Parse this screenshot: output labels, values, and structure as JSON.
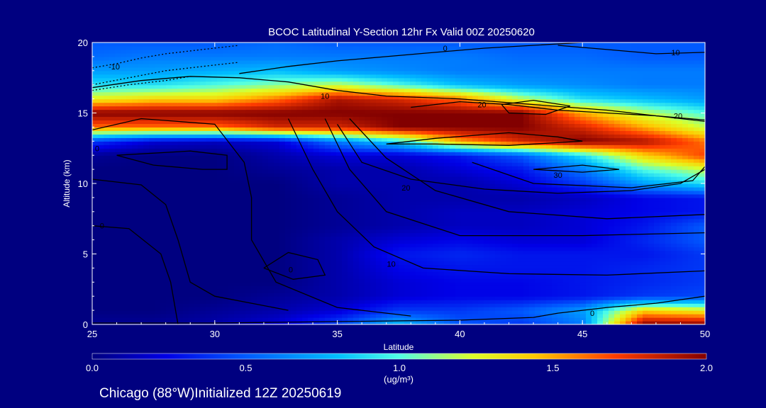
{
  "chart_data": {
    "type": "heatmap",
    "title": "BCOC Latitudinal Y-Section 12hr  Fx Valid 00Z 20250620",
    "xlabel": "Latitude",
    "ylabel": "Altitude (km)",
    "xlim": [
      25,
      50
    ],
    "ylim": [
      0,
      20
    ],
    "x_ticks": [
      "25",
      "30",
      "35",
      "40",
      "45",
      "50"
    ],
    "y_ticks": [
      "0",
      "5",
      "10",
      "15",
      "20"
    ],
    "colorbar": {
      "min": 0.0,
      "max": 2.0,
      "ticks": [
        "0.0",
        "0.5",
        "1.0",
        "1.5",
        "2.0"
      ],
      "unit_label": "(ug/m³)"
    },
    "concentration_grid": {
      "lats": [
        25,
        27.5,
        30,
        32.5,
        35,
        37.5,
        40,
        42.5,
        45,
        47.5,
        50
      ],
      "alts": [
        0,
        1,
        2,
        3,
        4,
        5,
        6,
        7,
        8,
        9,
        10,
        11,
        12,
        13,
        14,
        15,
        16,
        17,
        18,
        19,
        20
      ],
      "values": [
        [
          0.05,
          0.05,
          0.1,
          0.2,
          0.45,
          0.8,
          0.5,
          0.4,
          0.6,
          2.0,
          2.0
        ],
        [
          0.0,
          0.0,
          0.05,
          0.1,
          0.2,
          0.4,
          0.4,
          0.5,
          0.7,
          1.4,
          1.3
        ],
        [
          0.0,
          0.0,
          0.0,
          0.05,
          0.1,
          0.2,
          0.25,
          0.25,
          0.3,
          0.4,
          0.45
        ],
        [
          0.0,
          0.0,
          0.0,
          0.0,
          0.1,
          0.2,
          0.25,
          0.25,
          0.3,
          0.35,
          0.4
        ],
        [
          0.0,
          0.0,
          0.0,
          0.0,
          0.1,
          0.25,
          0.3,
          0.3,
          0.3,
          0.35,
          0.4
        ],
        [
          0.0,
          0.0,
          0.0,
          0.0,
          0.1,
          0.3,
          0.35,
          0.3,
          0.3,
          0.3,
          0.4
        ],
        [
          0.0,
          0.0,
          0.0,
          0.0,
          0.1,
          0.2,
          0.25,
          0.2,
          0.2,
          0.35,
          0.5
        ],
        [
          0.0,
          0.0,
          0.0,
          0.0,
          0.05,
          0.1,
          0.15,
          0.15,
          0.2,
          0.3,
          0.5
        ],
        [
          0.0,
          0.0,
          0.0,
          0.0,
          0.05,
          0.1,
          0.15,
          0.15,
          0.2,
          0.25,
          0.3
        ],
        [
          0.0,
          0.0,
          0.0,
          0.0,
          0.05,
          0.1,
          0.1,
          0.1,
          0.15,
          0.25,
          0.3
        ],
        [
          0.0,
          0.0,
          0.0,
          0.0,
          0.1,
          0.1,
          0.1,
          0.2,
          0.4,
          0.7,
          0.9
        ],
        [
          0.0,
          0.0,
          0.0,
          0.05,
          0.1,
          0.1,
          0.2,
          0.3,
          0.6,
          1.0,
          1.2
        ],
        [
          0.05,
          0.0,
          0.0,
          0.1,
          0.2,
          0.2,
          0.3,
          0.5,
          0.9,
          1.4,
          1.7
        ],
        [
          0.4,
          0.2,
          0.15,
          0.2,
          0.6,
          0.9,
          1.5,
          1.8,
          2.0,
          1.9,
          1.6
        ],
        [
          1.6,
          1.6,
          1.6,
          1.8,
          1.8,
          2.0,
          2.0,
          2.0,
          1.8,
          1.5,
          1.2
        ],
        [
          2.0,
          2.0,
          2.0,
          2.0,
          2.0,
          2.0,
          2.0,
          2.0,
          1.5,
          1.2,
          1.0
        ],
        [
          1.3,
          1.4,
          1.4,
          1.6,
          1.9,
          1.8,
          1.6,
          1.2,
          0.9,
          0.8,
          0.7
        ],
        [
          0.9,
          0.9,
          1.0,
          1.1,
          1.2,
          1.0,
          0.8,
          0.7,
          0.65,
          0.6,
          0.6
        ],
        [
          0.7,
          0.7,
          0.75,
          0.8,
          0.7,
          0.65,
          0.6,
          0.6,
          0.6,
          0.6,
          0.6
        ],
        [
          0.55,
          0.6,
          0.6,
          0.6,
          0.6,
          0.6,
          0.6,
          0.55,
          0.55,
          0.5,
          0.5
        ],
        [
          0.5,
          0.5,
          0.5,
          0.55,
          0.5,
          0.5,
          0.5,
          0.5,
          0.5,
          0.5,
          0.5
        ]
      ]
    },
    "contours": [
      {
        "label": "0",
        "dashed": false,
        "points": [
          [
            25,
            0.1
          ],
          [
            30,
            0.1
          ],
          [
            35,
            0.2
          ],
          [
            40,
            0.3
          ],
          [
            43,
            0.5
          ],
          [
            44,
            0.8
          ],
          [
            46,
            1.2
          ],
          [
            48,
            1.5
          ],
          [
            50,
            2.0
          ]
        ]
      },
      {
        "label": "10",
        "dashed": false,
        "points": [
          [
            25,
            16.8
          ],
          [
            27,
            17.3
          ],
          [
            29,
            17.6
          ],
          [
            31,
            17.5
          ],
          [
            33,
            17.2
          ],
          [
            35,
            16.6
          ],
          [
            37,
            16.2
          ],
          [
            40,
            16.0
          ],
          [
            43,
            15.6
          ],
          [
            46,
            15.2
          ],
          [
            48,
            14.8
          ],
          [
            50,
            14.5
          ]
        ]
      },
      {
        "label": "0",
        "dashed": false,
        "points": [
          [
            31,
            17.8
          ],
          [
            33,
            18.3
          ],
          [
            35,
            18.7
          ],
          [
            37,
            19.0
          ],
          [
            39,
            19.3
          ],
          [
            41,
            19.6
          ],
          [
            43,
            19.8
          ],
          [
            45,
            20.0
          ]
        ]
      },
      {
        "label": "10",
        "dashed": false,
        "points": [
          [
            44,
            19.8
          ],
          [
            46,
            19.5
          ],
          [
            48,
            19.2
          ],
          [
            50,
            19.3
          ]
        ]
      },
      {
        "label": "20",
        "dashed": false,
        "points": [
          [
            38,
            15.4
          ],
          [
            40,
            15.8
          ],
          [
            42,
            15.6
          ],
          [
            44,
            15.2
          ],
          [
            46,
            15.0
          ],
          [
            48,
            14.8
          ],
          [
            50,
            14.4
          ]
        ]
      },
      {
        "label": "30",
        "dashed": false,
        "points": [
          [
            37,
            12.8
          ],
          [
            39,
            13.2
          ],
          [
            42,
            13.6
          ],
          [
            44,
            13.3
          ],
          [
            45,
            13.0
          ],
          [
            42,
            12.7
          ],
          [
            39,
            12.8
          ],
          [
            37,
            12.8
          ]
        ]
      },
      {
        "label": "",
        "dashed": false,
        "points": [
          [
            41.7,
            15.6
          ],
          [
            43,
            15.9
          ],
          [
            44.5,
            15.5
          ],
          [
            43.5,
            14.9
          ],
          [
            42,
            15.0
          ],
          [
            41.7,
            15.6
          ]
        ]
      },
      {
        "label": "30",
        "dashed": false,
        "points": [
          [
            43,
            11.0
          ],
          [
            45,
            11.3
          ],
          [
            46.5,
            11.0
          ],
          [
            45,
            10.8
          ],
          [
            43,
            11.0
          ]
        ]
      },
      {
        "label": "20",
        "dashed": false,
        "points": [
          [
            35,
            14.2
          ],
          [
            36,
            11.5
          ],
          [
            38,
            10.3
          ],
          [
            41,
            9.6
          ],
          [
            44,
            9.3
          ],
          [
            47,
            9.5
          ],
          [
            49,
            10.0
          ],
          [
            50,
            11.0
          ]
        ]
      },
      {
        "label": "",
        "dashed": false,
        "points": [
          [
            40.5,
            11.5
          ],
          [
            43,
            10.0
          ],
          [
            47,
            9.7
          ],
          [
            49.5,
            10.2
          ],
          [
            50,
            11.2
          ]
        ]
      },
      {
        "label": "10",
        "dashed": false,
        "points": [
          [
            33,
            14.6
          ],
          [
            34,
            11.0
          ],
          [
            35,
            8.0
          ],
          [
            36.5,
            5.5
          ],
          [
            38.5,
            4.0
          ],
          [
            42,
            3.6
          ],
          [
            46,
            3.5
          ],
          [
            50,
            3.8
          ]
        ]
      },
      {
        "label": "",
        "dashed": false,
        "points": [
          [
            34.5,
            14.6
          ],
          [
            35.5,
            11.0
          ],
          [
            37,
            8.0
          ],
          [
            40,
            6.3
          ],
          [
            45,
            6.3
          ],
          [
            50,
            6.5
          ]
        ]
      },
      {
        "label": "",
        "dashed": false,
        "points": [
          [
            35.5,
            14.6
          ],
          [
            37,
            11.8
          ],
          [
            39,
            9.5
          ],
          [
            42,
            8.0
          ],
          [
            46,
            7.5
          ],
          [
            50,
            7.8
          ]
        ]
      },
      {
        "label": "0",
        "dashed": false,
        "points": [
          [
            32,
            4.0
          ],
          [
            33,
            5.1
          ],
          [
            34.2,
            4.6
          ],
          [
            34.5,
            3.5
          ],
          [
            33.2,
            3.2
          ],
          [
            32,
            4.0
          ]
        ]
      },
      {
        "label": "",
        "dashed": false,
        "points": [
          [
            26,
            12.0
          ],
          [
            27.5,
            11.3
          ],
          [
            29.5,
            11.0
          ],
          [
            30.5,
            11.0
          ],
          [
            30.5,
            12.0
          ],
          [
            29,
            12.3
          ],
          [
            26,
            12.0
          ]
        ]
      },
      {
        "label": "0",
        "dashed": false,
        "points": [
          [
            25,
            13.8
          ],
          [
            27,
            14.6
          ],
          [
            30,
            14.2
          ],
          [
            31.2,
            11.5
          ],
          [
            31.5,
            9.0
          ],
          [
            31.5,
            6.0
          ],
          [
            32.5,
            3.0
          ],
          [
            35,
            1.2
          ],
          [
            38,
            0.6
          ]
        ]
      },
      {
        "label": "",
        "dashed": false,
        "points": [
          [
            25,
            10.3
          ],
          [
            27,
            9.9
          ],
          [
            28,
            8.5
          ],
          [
            28.5,
            6.0
          ],
          [
            29,
            3.0
          ],
          [
            30,
            2.0
          ],
          [
            33,
            1.0
          ]
        ]
      },
      {
        "label": "0",
        "dashed": false,
        "points": [
          [
            25,
            7.0
          ],
          [
            26.5,
            6.8
          ],
          [
            27.8,
            5.0
          ],
          [
            28.2,
            3.0
          ],
          [
            28.5,
            0.0
          ]
        ]
      },
      {
        "label": "-10",
        "dashed": true,
        "points": [
          [
            25,
            18.2
          ],
          [
            26,
            18.5
          ],
          [
            27,
            18.9
          ],
          [
            28,
            19.2
          ],
          [
            29.5,
            19.5
          ],
          [
            31,
            19.8
          ]
        ]
      },
      {
        "label": "",
        "dashed": true,
        "points": [
          [
            25,
            17.0
          ],
          [
            26.5,
            17.5
          ],
          [
            28,
            18.0
          ],
          [
            29.5,
            18.3
          ],
          [
            31,
            18.6
          ]
        ]
      },
      {
        "label": "",
        "dashed": true,
        "points": [
          [
            25,
            16.6
          ],
          [
            26.5,
            17.0
          ],
          [
            28,
            17.3
          ],
          [
            29,
            17.6
          ]
        ]
      }
    ],
    "contour_labels": [
      {
        "text": "0",
        "x": 39.4,
        "y": 19.6
      },
      {
        "text": "-10",
        "x": 25.9,
        "y": 18.3
      },
      {
        "text": "10",
        "x": 48.8,
        "y": 19.3
      },
      {
        "text": "10",
        "x": 34.5,
        "y": 16.2
      },
      {
        "text": "20",
        "x": 40.9,
        "y": 15.6
      },
      {
        "text": "20",
        "x": 48.9,
        "y": 14.8
      },
      {
        "text": "30",
        "x": 44.0,
        "y": 10.6
      },
      {
        "text": "20",
        "x": 37.8,
        "y": 9.7
      },
      {
        "text": "10",
        "x": 37.2,
        "y": 4.3
      },
      {
        "text": "0",
        "x": 33.1,
        "y": 3.9
      },
      {
        "text": "0",
        "x": 25.4,
        "y": 7.0
      },
      {
        "text": "0",
        "x": 25.2,
        "y": 12.5
      },
      {
        "text": "0",
        "x": 45.4,
        "y": 0.8
      }
    ]
  },
  "footer": {
    "text": "Chicago (88°W)Initialized 12Z 20250619"
  }
}
